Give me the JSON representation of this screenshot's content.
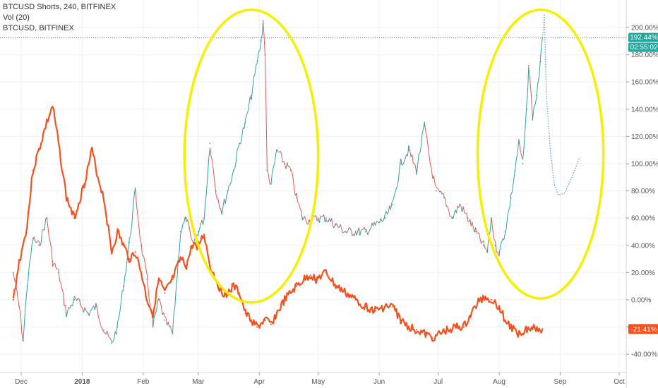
{
  "legend": {
    "line1": "BTCUSD Shorts, 240, BITFINEX",
    "line2": "Vol (20)",
    "line3": "BTCUSD, BITFINEX"
  },
  "badges": {
    "shorts_value": "192.44%",
    "countdown": "02:55:02",
    "btc_value": "-21.41%"
  },
  "colors": {
    "shorts_up": "#26a69a",
    "shorts_down": "#ef5350",
    "btcusd": "#f4511e",
    "ellipse": "#f5f000",
    "projection": "#4aa3c7",
    "badge_green": "#26a69a",
    "badge_red": "#f4511e"
  },
  "chart_data": {
    "type": "line",
    "title": "BTCUSD Shorts, 240, BITFINEX",
    "y_unit": "%",
    "ylim": [
      -45,
      213
    ],
    "y_ticks": [
      200,
      180,
      160,
      140,
      120,
      100,
      80,
      60,
      40,
      20,
      0,
      -20,
      -40
    ],
    "y_tick_labels": [
      "200.00%",
      "180.00%",
      "160.00%",
      "140.00%",
      "120.00%",
      "100.00%",
      "80.00%",
      "60.00%",
      "40.00%",
      "20.00%",
      "0.00%",
      "-20.00%",
      "-40.00%"
    ],
    "x_ticks": [
      "Dec",
      "2018",
      "Feb",
      "Mar",
      "Apr",
      "May",
      "Jun",
      "Jul",
      "Aug",
      "Sep",
      "Oct"
    ],
    "series": [
      {
        "name": "BTCUSD Shorts, 240, BITFINEX",
        "points": [
          [
            "Nov 27",
            20
          ],
          [
            "Nov 30",
            -5
          ],
          [
            "Dec 2",
            -30
          ],
          [
            "Dec 4",
            10
          ],
          [
            "Dec 7",
            45
          ],
          [
            "Dec 10",
            40
          ],
          [
            "Dec 14",
            60
          ],
          [
            "Dec 17",
            28
          ],
          [
            "Dec 20",
            20
          ],
          [
            "Dec 24",
            -10
          ],
          [
            "Dec 28",
            0
          ],
          [
            "Dec 31",
            -3
          ],
          [
            "Jan 4",
            -10
          ],
          [
            "Jan 8",
            -5
          ],
          [
            "Jan 12",
            -22
          ],
          [
            "Jan 16",
            -32
          ],
          [
            "Jan 19",
            -20
          ],
          [
            "Jan 22",
            10
          ],
          [
            "Jan 25",
            42
          ],
          [
            "Jan 28",
            80
          ],
          [
            "Jan 31",
            40
          ],
          [
            "Feb 3",
            15
          ],
          [
            "Feb 6",
            -20
          ],
          [
            "Feb 9",
            0
          ],
          [
            "Feb 12",
            -15
          ],
          [
            "Feb 16",
            -25
          ],
          [
            "Feb 20",
            50
          ],
          [
            "Feb 23",
            60
          ],
          [
            "Feb 26",
            40
          ],
          [
            "Mar 1",
            50
          ],
          [
            "Mar 4",
            60
          ],
          [
            "Mar 7",
            115
          ],
          [
            "Mar 10",
            80
          ],
          [
            "Mar 13",
            65
          ],
          [
            "Mar 16",
            80
          ],
          [
            "Mar 19",
            95
          ],
          [
            "Mar 22",
            115
          ],
          [
            "Mar 25",
            130
          ],
          [
            "Mar 28",
            150
          ],
          [
            "Mar 31",
            175
          ],
          [
            "Apr 2",
            190
          ],
          [
            "Apr 3",
            205
          ],
          [
            "Apr 4",
            180
          ],
          [
            "Apr 5",
            95
          ],
          [
            "Apr 7",
            85
          ],
          [
            "Apr 10",
            110
          ],
          [
            "Apr 14",
            100
          ],
          [
            "Apr 17",
            95
          ],
          [
            "Apr 20",
            75
          ],
          [
            "Apr 23",
            60
          ],
          [
            "Apr 27",
            58
          ],
          [
            "May 1",
            60
          ],
          [
            "May 5",
            60
          ],
          [
            "May 10",
            55
          ],
          [
            "May 15",
            50
          ],
          [
            "May 20",
            50
          ],
          [
            "May 25",
            50
          ],
          [
            "May 30",
            55
          ],
          [
            "Jun 4",
            60
          ],
          [
            "Jun 8",
            70
          ],
          [
            "Jun 12",
            100
          ],
          [
            "Jun 16",
            110
          ],
          [
            "Jun 20",
            95
          ],
          [
            "Jun 24",
            128
          ],
          [
            "Jun 27",
            100
          ],
          [
            "Jun 30",
            80
          ],
          [
            "Jul 4",
            75
          ],
          [
            "Jul 8",
            60
          ],
          [
            "Jul 12",
            70
          ],
          [
            "Jul 16",
            60
          ],
          [
            "Jul 20",
            50
          ],
          [
            "Jul 24",
            40
          ],
          [
            "Jul 26",
            35
          ],
          [
            "Jul 28",
            60
          ],
          [
            "Jul 30",
            40
          ],
          [
            "Aug 1",
            35
          ],
          [
            "Aug 4",
            50
          ],
          [
            "Aug 7",
            75
          ],
          [
            "Aug 9",
            95
          ],
          [
            "Aug 11",
            115
          ],
          [
            "Aug 13",
            100
          ],
          [
            "Aug 15",
            140
          ],
          [
            "Aug 16",
            172
          ],
          [
            "Aug 18",
            135
          ],
          [
            "Aug 20",
            150
          ],
          [
            "Aug 22",
            175
          ],
          [
            "Aug 23",
            192.44
          ]
        ]
      },
      {
        "name": "BTCUSD, BITFINEX",
        "points": [
          [
            "Nov 27",
            0
          ],
          [
            "Nov 30",
            28
          ],
          [
            "Dec 2",
            40
          ],
          [
            "Dec 4",
            55
          ],
          [
            "Dec 7",
            95
          ],
          [
            "Dec 10",
            110
          ],
          [
            "Dec 14",
            130
          ],
          [
            "Dec 17",
            142
          ],
          [
            "Dec 20",
            115
          ],
          [
            "Dec 24",
            75
          ],
          [
            "Dec 28",
            60
          ],
          [
            "Jan 2",
            85
          ],
          [
            "Jan 6",
            110
          ],
          [
            "Jan 9",
            90
          ],
          [
            "Jan 12",
            75
          ],
          [
            "Jan 16",
            35
          ],
          [
            "Jan 19",
            50
          ],
          [
            "Jan 22",
            40
          ],
          [
            "Jan 25",
            30
          ],
          [
            "Jan 28",
            35
          ],
          [
            "Jan 31",
            20
          ],
          [
            "Feb 3",
            0
          ],
          [
            "Feb 6",
            -10
          ],
          [
            "Feb 9",
            15
          ],
          [
            "Feb 12",
            5
          ],
          [
            "Feb 16",
            15
          ],
          [
            "Feb 20",
            30
          ],
          [
            "Feb 23",
            25
          ],
          [
            "Feb 26",
            40
          ],
          [
            "Mar 1",
            40
          ],
          [
            "Mar 4",
            48
          ],
          [
            "Mar 7",
            25
          ],
          [
            "Mar 10",
            15
          ],
          [
            "Mar 13",
            5
          ],
          [
            "Mar 16",
            5
          ],
          [
            "Mar 19",
            10
          ],
          [
            "Mar 22",
            5
          ],
          [
            "Mar 25",
            -10
          ],
          [
            "Mar 28",
            -15
          ],
          [
            "Mar 31",
            -20
          ],
          [
            "Apr 4",
            -15
          ],
          [
            "Apr 7",
            -18
          ],
          [
            "Apr 10",
            -10
          ],
          [
            "Apr 14",
            0
          ],
          [
            "Apr 17",
            5
          ],
          [
            "Apr 20",
            10
          ],
          [
            "Apr 24",
            15
          ],
          [
            "Apr 27",
            18
          ],
          [
            "Apr 30",
            15
          ],
          [
            "May 5",
            20
          ],
          [
            "May 10",
            10
          ],
          [
            "May 15",
            5
          ],
          [
            "May 20",
            0
          ],
          [
            "May 25",
            -5
          ],
          [
            "May 30",
            -8
          ],
          [
            "Jun 4",
            -5
          ],
          [
            "Jun 8",
            -5
          ],
          [
            "Jun 12",
            -15
          ],
          [
            "Jun 16",
            -20
          ],
          [
            "Jun 20",
            -22
          ],
          [
            "Jun 24",
            -25
          ],
          [
            "Jun 28",
            -28
          ],
          [
            "Jul 2",
            -25
          ],
          [
            "Jul 6",
            -22
          ],
          [
            "Jul 10",
            -20
          ],
          [
            "Jul 14",
            -20
          ],
          [
            "Jul 18",
            -10
          ],
          [
            "Jul 22",
            0
          ],
          [
            "Jul 25",
            2
          ],
          [
            "Jul 28",
            0
          ],
          [
            "Aug 1",
            -5
          ],
          [
            "Aug 4",
            -15
          ],
          [
            "Aug 7",
            -20
          ],
          [
            "Aug 10",
            -25
          ],
          [
            "Aug 14",
            -22
          ],
          [
            "Aug 18",
            -20
          ],
          [
            "Aug 23",
            -21.41
          ]
        ]
      }
    ],
    "annotations": {
      "ellipses": [
        {
          "date_from": "Feb 22",
          "date_to": "May 1",
          "y_top": 213,
          "y_bottom": -2
        },
        {
          "date_from": "Jul 21",
          "date_to": "Sep 23",
          "y_top": 213,
          "y_bottom": 1
        }
      ],
      "projection_path": [
        [
          "Aug 23",
          192.44
        ],
        [
          "Aug 24",
          210
        ],
        [
          "Aug 25",
          150
        ],
        [
          "Aug 27",
          110
        ],
        [
          "Aug 29",
          85
        ],
        [
          "Aug 31",
          77
        ],
        [
          "Sep 3",
          78
        ],
        [
          "Sep 7",
          90
        ],
        [
          "Sep 11",
          105
        ]
      ],
      "horizontal_marker": 192.44
    },
    "grid": true,
    "legend_position": "top-left"
  }
}
